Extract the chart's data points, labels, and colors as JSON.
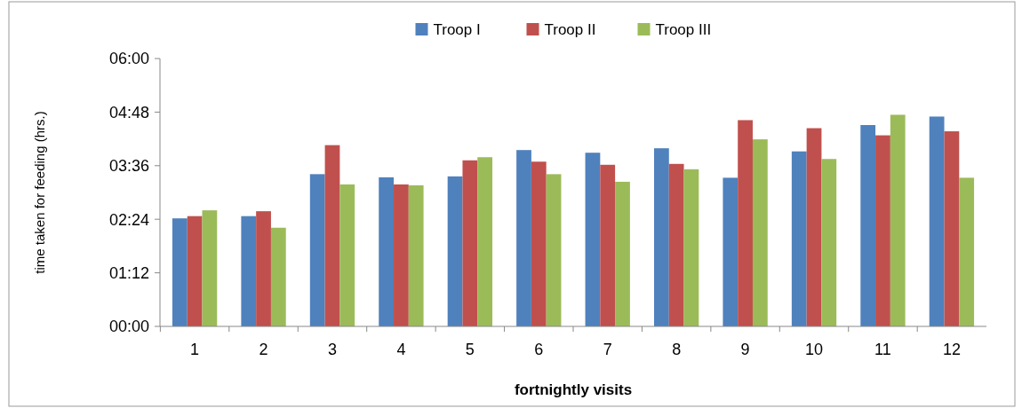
{
  "chart_data": {
    "type": "bar",
    "xlabel": "fortnightly visits",
    "ylabel": "time taken for feeding (hrs.)",
    "categories": [
      "1",
      "2",
      "3",
      "4",
      "5",
      "6",
      "7",
      "8",
      "9",
      "10",
      "11",
      "12"
    ],
    "series": [
      {
        "name": "Troop I",
        "color": "#4f81bd",
        "values": [
          2.42,
          2.47,
          3.41,
          3.34,
          3.36,
          3.95,
          3.89,
          3.99,
          3.33,
          3.92,
          4.51,
          4.7
        ]
      },
      {
        "name": "Troop II",
        "color": "#c0504d",
        "values": [
          2.47,
          2.58,
          4.06,
          3.18,
          3.72,
          3.69,
          3.62,
          3.64,
          4.62,
          4.44,
          4.28,
          4.37
        ]
      },
      {
        "name": "Troop III",
        "color": "#9bbb59",
        "values": [
          2.6,
          2.21,
          3.18,
          3.16,
          3.79,
          3.41,
          3.24,
          3.52,
          4.19,
          3.75,
          4.74,
          3.33
        ]
      }
    ],
    "ylim": [
      0,
      6
    ],
    "yticks": [
      {
        "value": 0,
        "label": "00:00"
      },
      {
        "value": 1.2,
        "label": "01:12"
      },
      {
        "value": 2.4,
        "label": "02:24"
      },
      {
        "value": 3.6,
        "label": "03:36"
      },
      {
        "value": 4.8,
        "label": "04:48"
      },
      {
        "value": 6,
        "label": "06:00"
      }
    ],
    "legend": "top",
    "grid": false
  }
}
